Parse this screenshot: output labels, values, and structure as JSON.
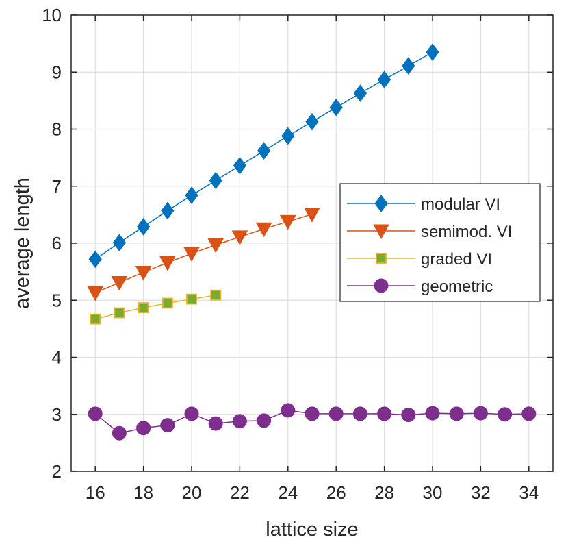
{
  "chart_data": {
    "type": "line",
    "xlabel": "lattice size",
    "ylabel": "average length",
    "xlim": [
      15,
      35
    ],
    "ylim": [
      2,
      10
    ],
    "xticks": [
      16,
      18,
      20,
      22,
      24,
      26,
      28,
      30,
      32,
      34
    ],
    "yticks": [
      2,
      3,
      4,
      5,
      6,
      7,
      8,
      9,
      10
    ],
    "grid": true,
    "legend_position": "right",
    "series": [
      {
        "name": "modular VI",
        "color": "#0072BD",
        "marker": "diamond",
        "x": [
          16,
          17,
          18,
          19,
          20,
          21,
          22,
          23,
          24,
          25,
          26,
          27,
          28,
          29,
          30
        ],
        "values": [
          5.72,
          6.01,
          6.29,
          6.57,
          6.84,
          7.1,
          7.36,
          7.62,
          7.88,
          8.13,
          8.38,
          8.63,
          8.87,
          9.11,
          9.35
        ]
      },
      {
        "name": "semimod. VI",
        "color": "#D95319",
        "marker": "triangle-down",
        "x": [
          16,
          17,
          18,
          19,
          20,
          21,
          22,
          23,
          24,
          25
        ],
        "values": [
          5.13,
          5.31,
          5.49,
          5.66,
          5.82,
          5.97,
          6.11,
          6.25,
          6.38,
          6.51
        ]
      },
      {
        "name": "graded VI",
        "color": "#EDB120",
        "fill": "#77AC30",
        "marker": "square",
        "x": [
          16,
          17,
          18,
          19,
          20,
          21
        ],
        "values": [
          4.67,
          4.78,
          4.87,
          4.95,
          5.02,
          5.09
        ]
      },
      {
        "name": "geometric",
        "color": "#7E2F8E",
        "marker": "circle",
        "x": [
          16,
          17,
          18,
          19,
          20,
          21,
          22,
          23,
          24,
          25,
          26,
          27,
          28,
          29,
          30,
          31,
          32,
          33,
          34
        ],
        "values": [
          3.01,
          2.67,
          2.76,
          2.81,
          3.01,
          2.84,
          2.88,
          2.89,
          3.07,
          3.01,
          3.01,
          3.01,
          3.01,
          2.99,
          3.02,
          3.01,
          3.02,
          3.0,
          3.01
        ]
      }
    ]
  }
}
